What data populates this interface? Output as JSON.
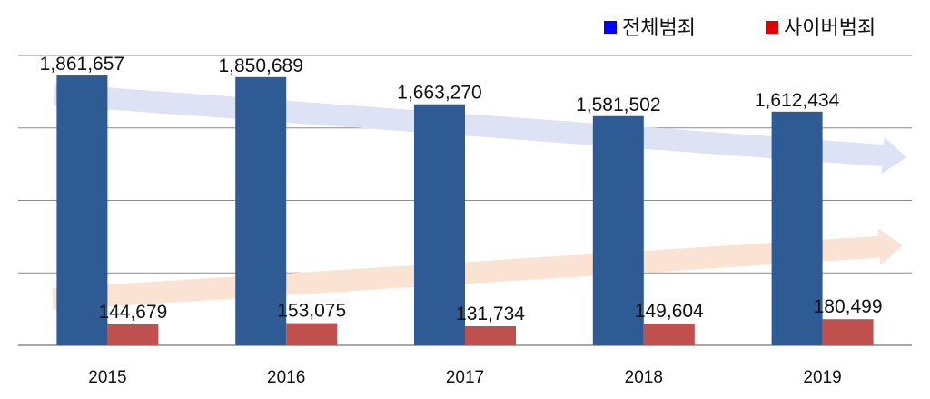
{
  "chart_data": {
    "type": "bar",
    "categories": [
      "2015",
      "2016",
      "2017",
      "2018",
      "2019"
    ],
    "series": [
      {
        "name": "전체범죄",
        "color": "#2e5b94",
        "values": [
          1861657,
          1850689,
          1663270,
          1581502,
          1612434
        ],
        "labels": [
          "1,861,657",
          "1,850,689",
          "1,663,270",
          "1,581,502",
          "1,612,434"
        ]
      },
      {
        "name": "사이버범죄",
        "color": "#c0504d",
        "values": [
          144679,
          153075,
          131734,
          149604,
          180499
        ],
        "labels": [
          "144,679",
          "153,075",
          "131,734",
          "149,604",
          "180,499"
        ],
        "highlight_last_label_color": "#c00000"
      }
    ],
    "ylim": [
      0,
      2000000
    ],
    "grid": true,
    "legend_position": "top-right",
    "trend_arrows": [
      {
        "series": "전체범죄",
        "direction": "down",
        "color": "#dde3f5"
      },
      {
        "series": "사이버범죄",
        "direction": "up",
        "color": "#fbe3d3"
      }
    ],
    "legend_marker_colors": [
      "#0000ff",
      "#e00000"
    ]
  }
}
